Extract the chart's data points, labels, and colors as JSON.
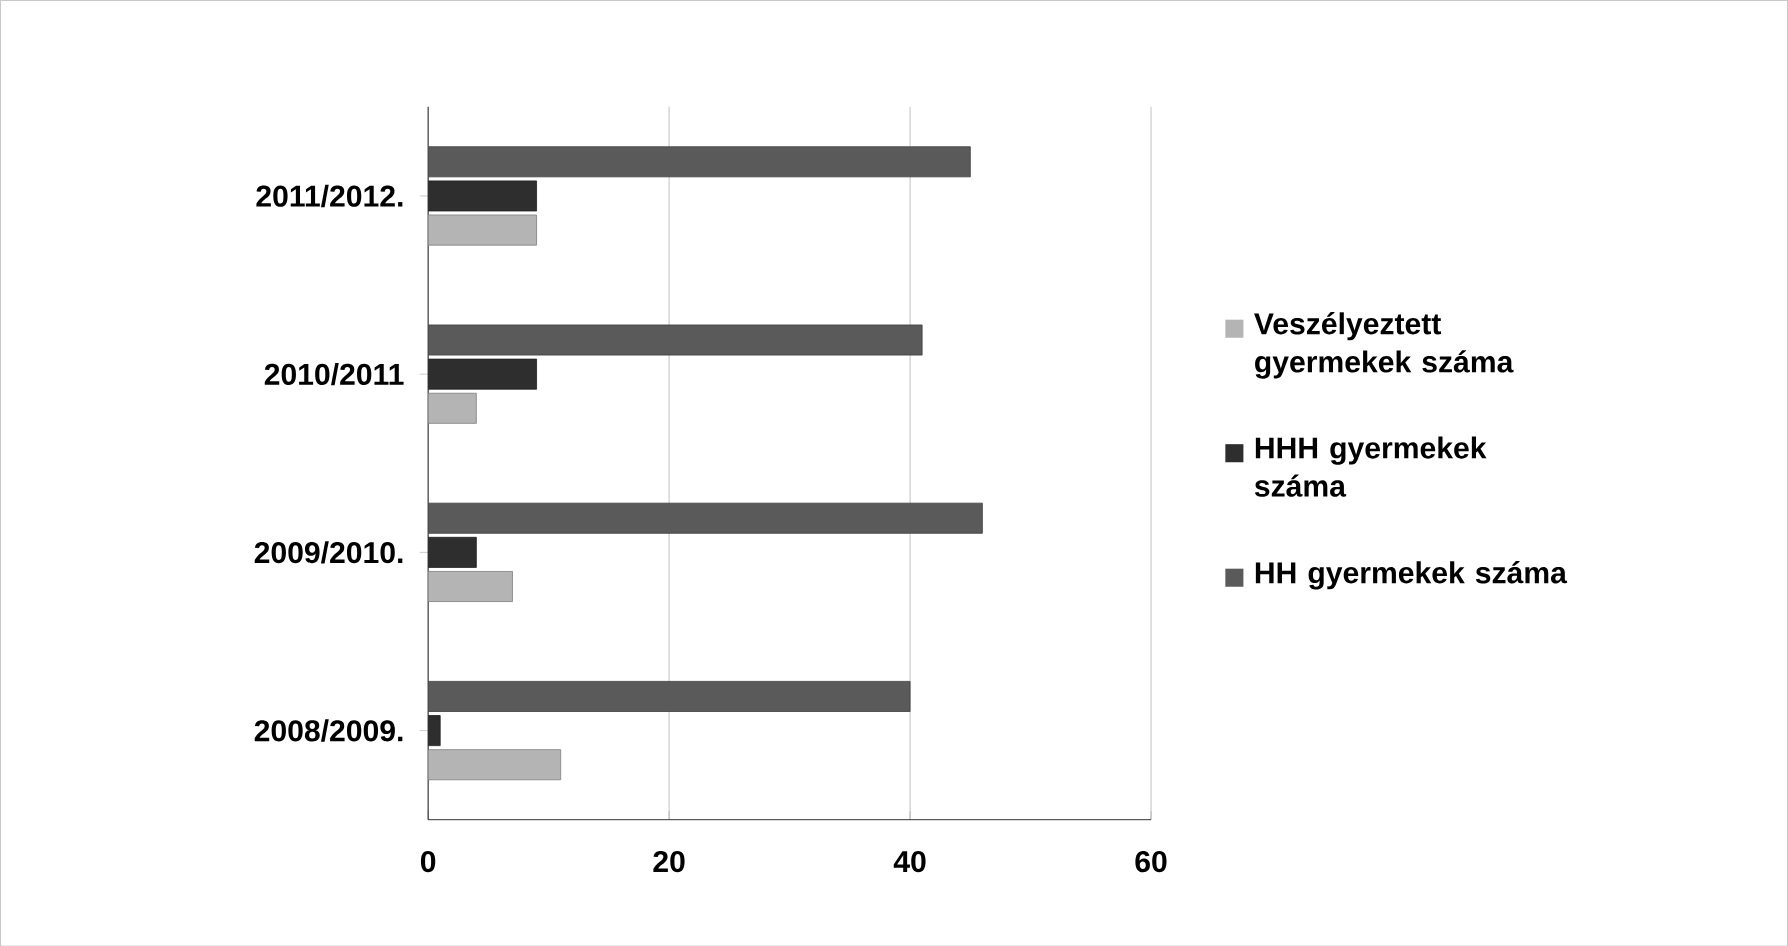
{
  "chart_data": {
    "type": "bar",
    "orientation": "horizontal",
    "categories": [
      "2011/2012.",
      "2010/2011",
      "2009/2010.",
      "2008/2009."
    ],
    "series": [
      {
        "name": "Veszélyeztett gyermekek száma",
        "color": "#b4b4b4",
        "values": [
          9,
          4,
          7,
          11
        ]
      },
      {
        "name": "HHH gyermekek száma",
        "color": "#2e2e2e",
        "values": [
          9,
          9,
          4,
          1
        ]
      },
      {
        "name": "HH gyermekek száma",
        "color": "#5a5a5a",
        "values": [
          45,
          41,
          46,
          40
        ]
      }
    ],
    "xlim": [
      0,
      60
    ],
    "xticks": [
      0,
      20,
      40,
      60
    ],
    "grid": "x",
    "legend": "right"
  }
}
